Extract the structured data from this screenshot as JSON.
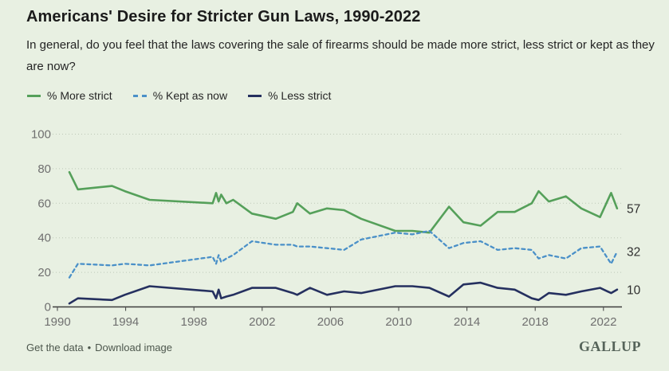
{
  "header": {
    "title": "Americans' Desire for Stricter Gun Laws, 1990-2022",
    "subtitle": "In general, do you feel that the laws covering the sale of firearms should be made more strict, less strict or kept as they are now?"
  },
  "footer": {
    "get_data_label": "Get the data",
    "separator": "•",
    "download_label": "Download image",
    "brand": "GALLUP"
  },
  "chart_data": {
    "type": "line",
    "title": "Americans' Desire for Stricter Gun Laws, 1990-2022",
    "question": "In general, do you feel that the laws covering the sale of firearms should be made more strict, less strict or kept as they are now?",
    "xlim": [
      1989.6,
      2023.3
    ],
    "ylim": [
      0,
      100
    ],
    "grid": "horizontal-dotted",
    "legend_position": "top",
    "axis_label_color": "#6f6f6f",
    "x_ticks": [
      "1990",
      "1994",
      "1998",
      "2002",
      "2006",
      "2010",
      "2014",
      "2018",
      "2022"
    ],
    "x_tick_years": [
      1990,
      1994,
      1998,
      2002,
      2006,
      2010,
      2014,
      2018,
      2022
    ],
    "y_ticks": [
      0,
      20,
      40,
      60,
      80,
      100
    ],
    "x": [
      1990.7,
      1991.2,
      1993.2,
      1993.95,
      1995.4,
      1999.1,
      1999.3,
      1999.45,
      1999.6,
      1999.9,
      2000.3,
      2001.4,
      2002.8,
      2003.8,
      2004.05,
      2004.8,
      2005.8,
      2006.8,
      2007.8,
      2009.8,
      2010.8,
      2011.8,
      2012.95,
      2013.8,
      2014.8,
      2015.8,
      2016.8,
      2017.8,
      2018.2,
      2018.8,
      2019.8,
      2020.7,
      2021.8,
      2022.45,
      2022.8
    ],
    "series": [
      {
        "name": "% More strict",
        "color": "#55a05a",
        "line_style": "solid",
        "end_label": "57",
        "values": [
          78,
          68,
          70,
          67,
          62,
          60,
          66,
          61,
          65,
          60,
          62,
          54,
          51,
          55,
          60,
          54,
          57,
          56,
          51,
          44,
          44,
          43,
          58,
          49,
          47,
          55,
          55,
          60,
          67,
          61,
          64,
          57,
          52,
          66,
          57
        ]
      },
      {
        "name": "% Kept as now",
        "color": "#4a90c8",
        "line_style": "dashed",
        "end_label": "32",
        "values": [
          17,
          25,
          24,
          25,
          24,
          29,
          25,
          30,
          26,
          28,
          30,
          38,
          36,
          36,
          35,
          35,
          34,
          33,
          39,
          43,
          42,
          44,
          34,
          37,
          38,
          33,
          34,
          33,
          28,
          30,
          28,
          34,
          35,
          25,
          32
        ]
      },
      {
        "name": "% Less strict",
        "color": "#25305f",
        "line_style": "solid",
        "end_label": "10",
        "values": [
          2,
          5,
          4,
          7,
          12,
          9,
          5,
          10,
          5,
          6,
          7,
          11,
          11,
          8,
          7,
          11,
          7,
          9,
          8,
          12,
          12,
          11,
          6,
          13,
          14,
          11,
          10,
          5,
          4,
          8,
          7,
          9,
          11,
          8,
          10
        ]
      }
    ]
  }
}
